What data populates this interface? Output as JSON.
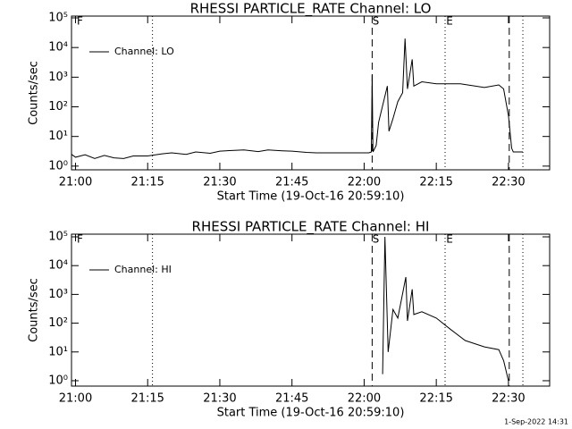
{
  "chart_data": [
    {
      "type": "line",
      "title": "RHESSI PARTICLE_RATE Channel: LO",
      "xlabel": "Start Time (19-Oct-16 20:59:10)",
      "ylabel": "Counts/sec",
      "log_y": true,
      "legend": "top-left",
      "color": "#000000",
      "xlim": [
        "20:59:10",
        "22:38:34"
      ],
      "xticks": [
        "21:00",
        "21:15",
        "21:30",
        "21:45",
        "22:00",
        "22:15",
        "22:30"
      ],
      "ylim": [
        0.75,
        115000
      ],
      "yticks": [
        {
          "value": 1,
          "label": "10⁰"
        },
        {
          "value": 10,
          "label": "10¹"
        },
        {
          "value": 100,
          "label": "10²"
        },
        {
          "value": 1000,
          "label": "10³"
        },
        {
          "value": 10000,
          "label": "10⁴"
        },
        {
          "value": 100000,
          "label": "10⁵"
        }
      ],
      "markers": [
        {
          "x": "21:16:00",
          "style": "dotted"
        },
        {
          "x": "22:01:40",
          "style": "dashed"
        },
        {
          "x": "22:16:50",
          "style": "dotted"
        },
        {
          "x": "22:30:10",
          "style": "dashed"
        },
        {
          "x": "22:33:00",
          "style": "dotted"
        }
      ],
      "annotations": [
        {
          "text": "F",
          "x": "21:00:55"
        },
        {
          "text": "S",
          "x": "22:02:25"
        },
        {
          "text": "E",
          "x": "22:17:46"
        }
      ],
      "series": [
        {
          "name": "Channel: LO",
          "color": "#000000",
          "x": [
            "20:59:10",
            "21:00",
            "21:02",
            "21:04",
            "21:06",
            "21:08",
            "21:10",
            "21:12",
            "21:15",
            "21:18",
            "21:20",
            "21:23",
            "21:25",
            "21:28",
            "21:30",
            "21:33",
            "21:35",
            "21:38",
            "21:40",
            "21:43",
            "21:45",
            "21:48",
            "21:50",
            "21:55",
            "22:01",
            "22:01:30",
            "22:01:40",
            "22:01:50",
            "22:02:30",
            "22:03",
            "22:04:50",
            "22:05:10",
            "22:06",
            "22:07",
            "22:08",
            "22:08:30",
            "22:09",
            "22:10",
            "22:10:20",
            "22:12",
            "22:15",
            "22:20",
            "22:25",
            "22:28",
            "22:29",
            "22:30",
            "22:30:40",
            "22:31",
            "22:33"
          ],
          "values": [
            2.5,
            2,
            2.4,
            1.8,
            2.3,
            1.9,
            1.8,
            2.2,
            2.2,
            2.6,
            2.8,
            2.5,
            3,
            2.7,
            3.2,
            3.4,
            3.5,
            3.1,
            3.5,
            3.3,
            3.2,
            2.9,
            2.8,
            2.8,
            2.8,
            3,
            1200,
            3,
            5,
            30,
            500,
            15,
            40,
            150,
            300,
            20000,
            400,
            4000,
            500,
            700,
            600,
            600,
            450,
            550,
            400,
            50,
            4,
            3,
            3
          ]
        }
      ]
    },
    {
      "type": "line",
      "title": "RHESSI PARTICLE_RATE Channel: HI",
      "xlabel": "Start Time (19-Oct-16 20:59:10)",
      "ylabel": "Counts/sec",
      "log_y": true,
      "legend": "top-left",
      "color": "#000000",
      "xlim": [
        "20:59:10",
        "22:38:34"
      ],
      "xticks": [
        "21:00",
        "21:15",
        "21:30",
        "21:45",
        "22:00",
        "22:15",
        "22:30"
      ],
      "ylim": [
        0.65,
        124000
      ],
      "yticks": [
        {
          "value": 1,
          "label": "10⁰"
        },
        {
          "value": 10,
          "label": "10¹"
        },
        {
          "value": 100,
          "label": "10²"
        },
        {
          "value": 1000,
          "label": "10³"
        },
        {
          "value": 10000,
          "label": "10⁴"
        },
        {
          "value": 100000,
          "label": "10⁵"
        }
      ],
      "markers": [
        {
          "x": "21:16:00",
          "style": "dotted"
        },
        {
          "x": "22:01:40",
          "style": "dashed"
        },
        {
          "x": "22:16:50",
          "style": "dotted"
        },
        {
          "x": "22:30:10",
          "style": "dashed"
        },
        {
          "x": "22:33:00",
          "style": "dotted"
        }
      ],
      "annotations": [
        {
          "text": "F",
          "x": "21:00:55"
        },
        {
          "text": "S",
          "x": "22:02:25"
        },
        {
          "text": "E",
          "x": "22:17:46"
        }
      ],
      "series": [
        {
          "name": "Channel: HI",
          "color": "#000000",
          "x": [
            "22:03:50",
            "22:04:20",
            "22:05",
            "22:06",
            "22:07",
            "22:08:40",
            "22:09",
            "22:10",
            "22:10:20",
            "22:12",
            "22:15",
            "22:18",
            "22:21",
            "22:25",
            "22:28",
            "22:29",
            "22:30"
          ],
          "values": [
            1.7,
            100000,
            10,
            300,
            150,
            4000,
            120,
            1500,
            200,
            250,
            150,
            60,
            25,
            15,
            12,
            5,
            1
          ]
        }
      ]
    }
  ],
  "footer": "1-Sep-2022 14:31"
}
